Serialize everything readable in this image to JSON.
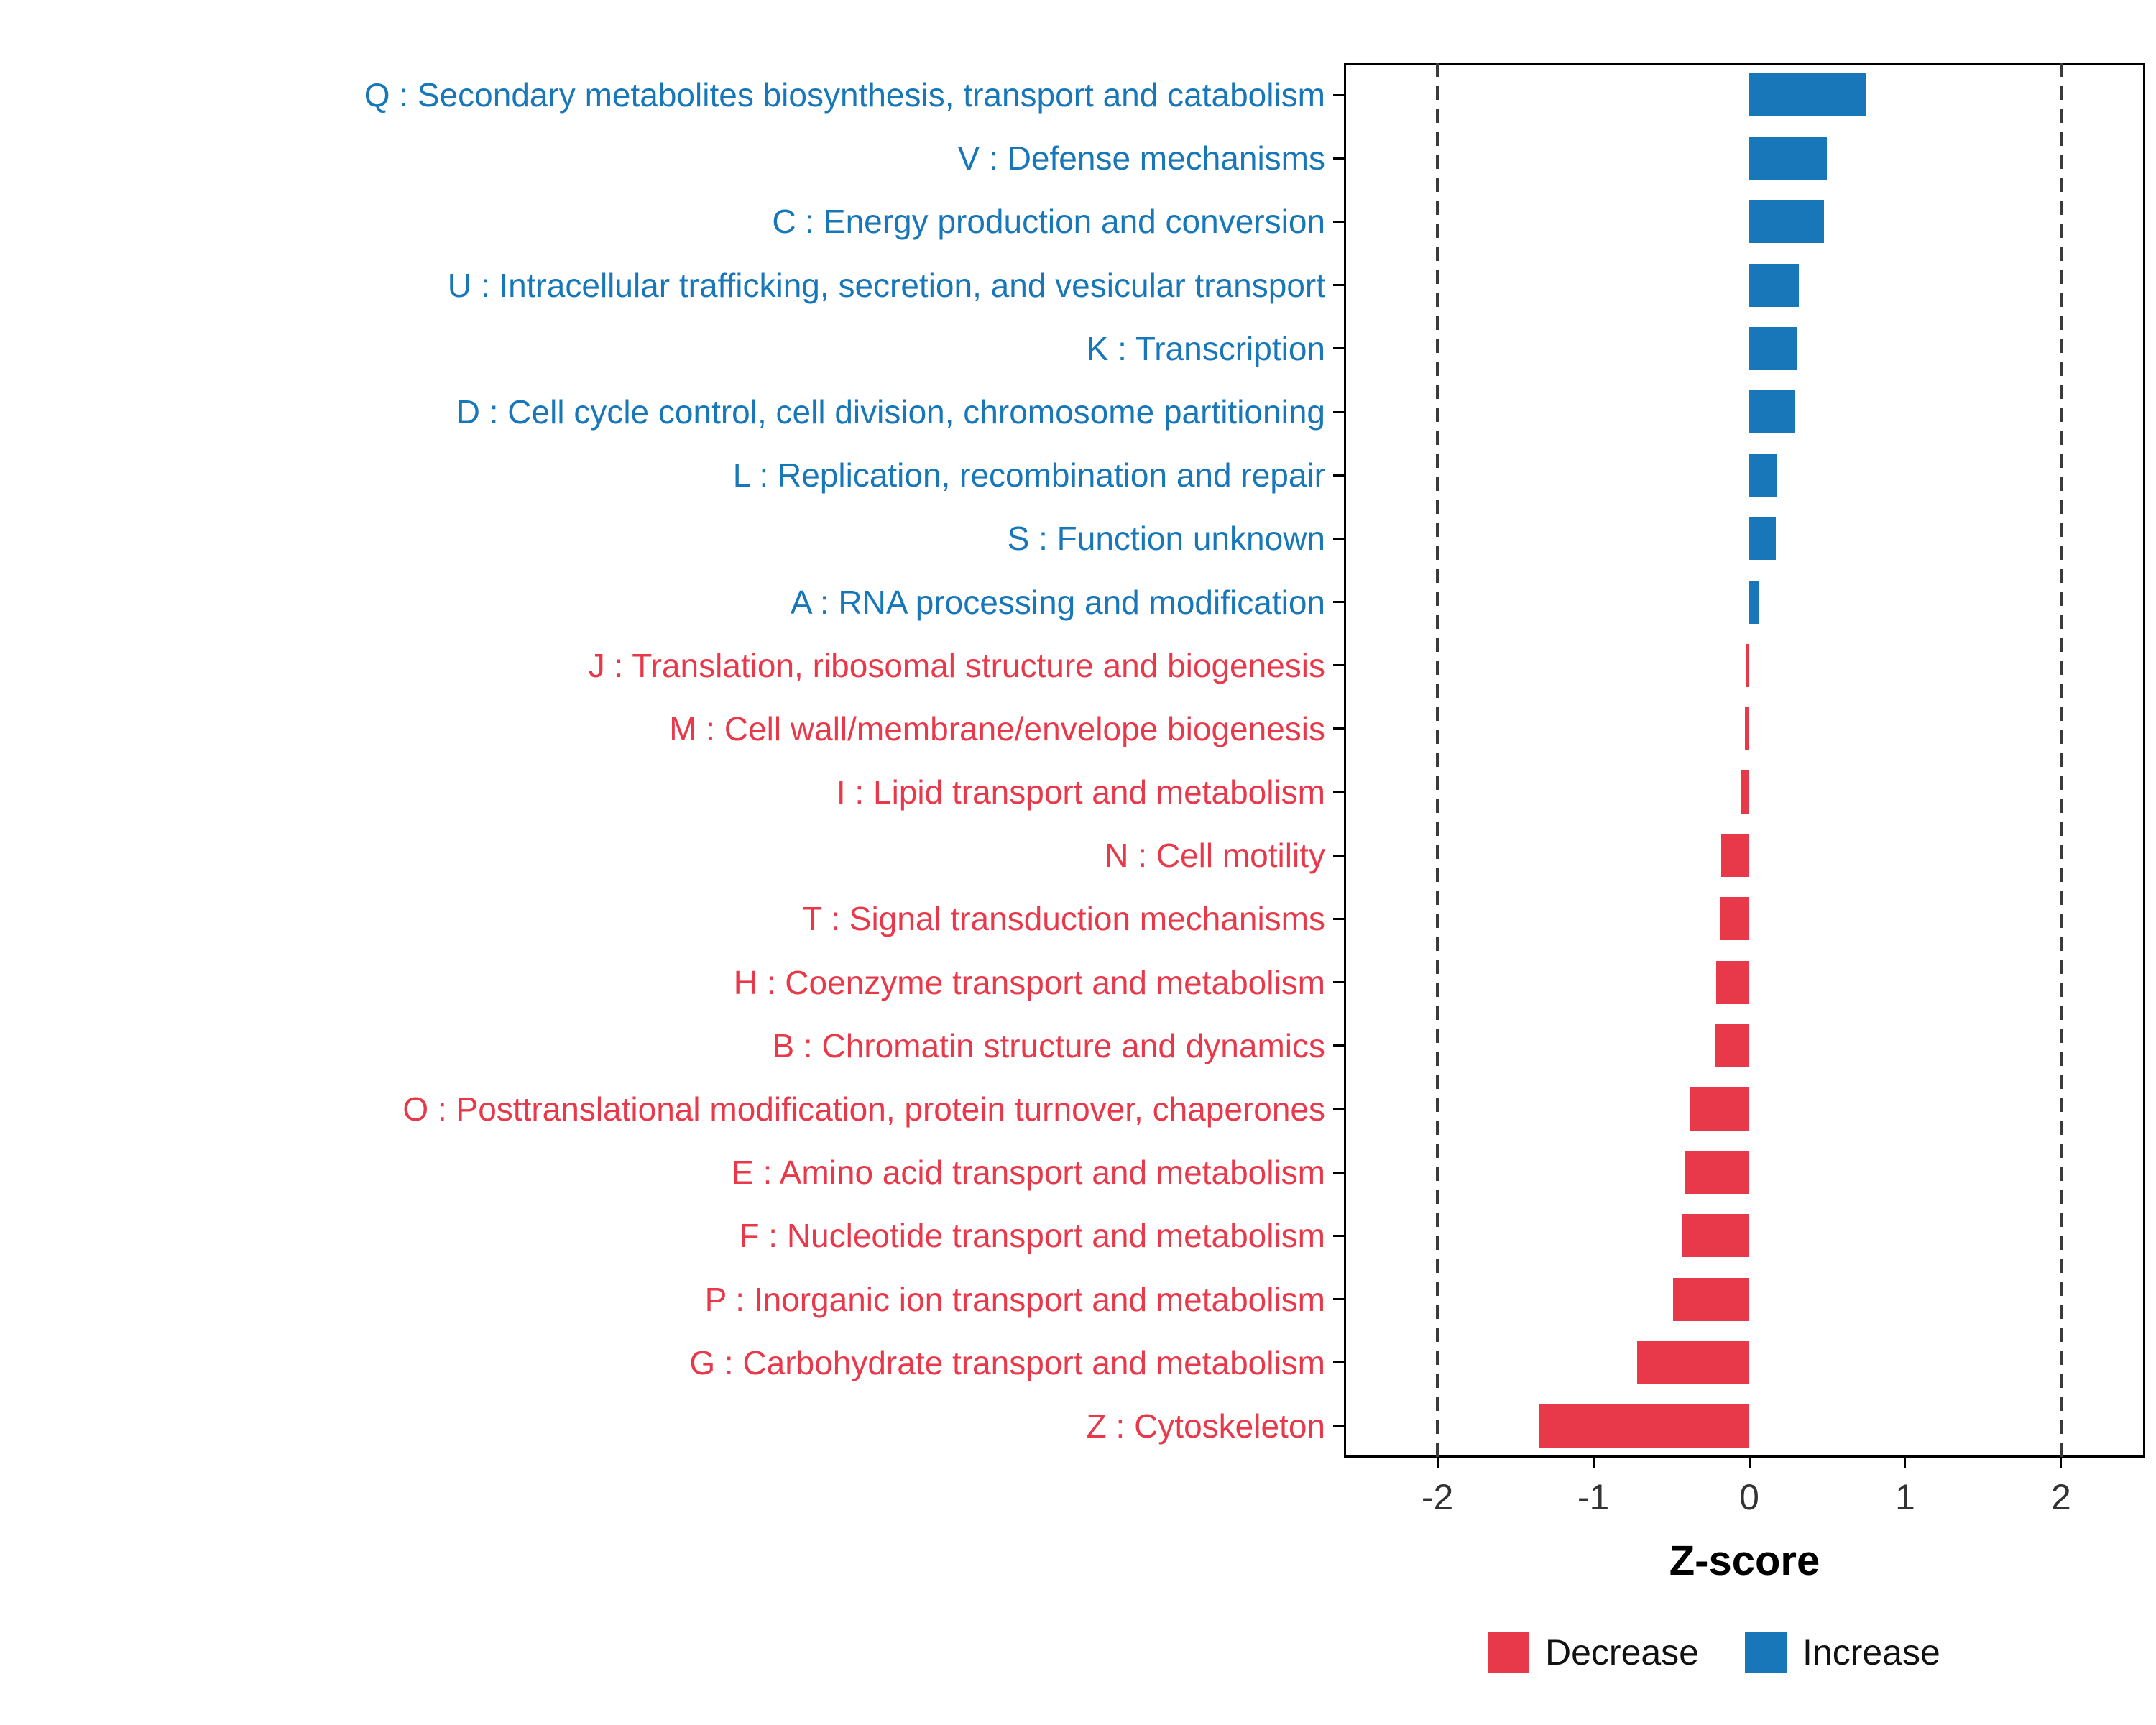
{
  "chart_data": {
    "type": "bar",
    "orientation": "horizontal",
    "title": "",
    "xlabel": "Z-score",
    "xlim": [
      -2.6,
      2.54
    ],
    "x_ticks": [
      "-2",
      "-1",
      "0",
      "1",
      "2"
    ],
    "x_tick_values": [
      -2,
      -1,
      0,
      1,
      2
    ],
    "reference_lines": [
      -2,
      2
    ],
    "grid": "off",
    "legend_position": "bottom-right",
    "colors": {
      "increase": "#1877B8",
      "decrease": "#E8394B",
      "reference_line": "#3A3A3A",
      "axis_text": "#333333"
    },
    "legend": {
      "decrease_label": "Decrease",
      "increase_label": "Increase"
    },
    "rows": [
      {
        "label": "Q : Secondary metabolites biosynthesis, transport and catabolism",
        "value": 0.75,
        "direction": "increase"
      },
      {
        "label": "V : Defense mechanisms",
        "value": 0.5,
        "direction": "increase"
      },
      {
        "label": "C : Energy production and conversion",
        "value": 0.48,
        "direction": "increase"
      },
      {
        "label": "U : Intracellular trafficking, secretion, and vesicular transport",
        "value": 0.32,
        "direction": "increase"
      },
      {
        "label": "K : Transcription",
        "value": 0.31,
        "direction": "increase"
      },
      {
        "label": "D : Cell cycle control, cell division, chromosome partitioning",
        "value": 0.29,
        "direction": "increase"
      },
      {
        "label": "L : Replication, recombination and repair",
        "value": 0.18,
        "direction": "increase"
      },
      {
        "label": "S : Function unknown",
        "value": 0.17,
        "direction": "increase"
      },
      {
        "label": "A : RNA processing and modification",
        "value": 0.06,
        "direction": "increase"
      },
      {
        "label": "J : Translation, ribosomal structure and biogenesis",
        "value": -0.02,
        "direction": "decrease"
      },
      {
        "label": "M : Cell wall/membrane/envelope biogenesis",
        "value": -0.03,
        "direction": "decrease"
      },
      {
        "label": "I : Lipid transport and metabolism",
        "value": -0.05,
        "direction": "decrease"
      },
      {
        "label": "N : Cell motility",
        "value": -0.18,
        "direction": "decrease"
      },
      {
        "label": "T : Signal transduction mechanisms",
        "value": -0.19,
        "direction": "decrease"
      },
      {
        "label": "H : Coenzyme transport and metabolism",
        "value": -0.21,
        "direction": "decrease"
      },
      {
        "label": "B : Chromatin structure and dynamics",
        "value": -0.22,
        "direction": "decrease"
      },
      {
        "label": "O : Posttranslational modification, protein turnover, chaperones",
        "value": -0.38,
        "direction": "decrease"
      },
      {
        "label": "E : Amino acid transport and metabolism",
        "value": -0.41,
        "direction": "decrease"
      },
      {
        "label": "F : Nucleotide transport and metabolism",
        "value": -0.43,
        "direction": "decrease"
      },
      {
        "label": "P : Inorganic ion transport and metabolism",
        "value": -0.49,
        "direction": "decrease"
      },
      {
        "label": "G : Carbohydrate transport and metabolism",
        "value": -0.72,
        "direction": "decrease"
      },
      {
        "label": "Z : Cytoskeleton",
        "value": -1.35,
        "direction": "decrease"
      }
    ]
  }
}
